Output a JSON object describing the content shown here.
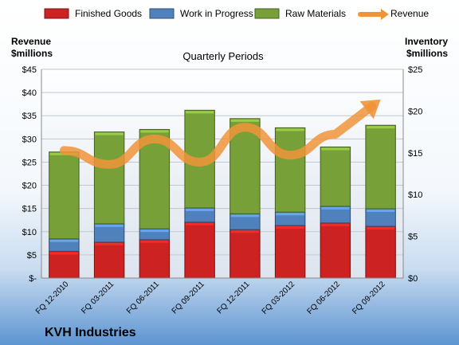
{
  "company": "KVH Industries",
  "chart_data": {
    "type": "bar",
    "stacked": true,
    "title": "Quarterly Periods",
    "ylabel_left_line1": "Revenue",
    "ylabel_left_line2": "$millions",
    "ylabel_right_line1": "Inventory",
    "ylabel_right_line2": "$millions",
    "categories": [
      "FQ 12-2010",
      "FQ 03-2011",
      "FQ 06-2011",
      "FQ 09-2011",
      "FQ 12-2011",
      "FQ 03-2012",
      "FQ 06-2012",
      "FQ 09-2012"
    ],
    "series": [
      {
        "name": "Finished Goods",
        "axis": "right",
        "color": "#cc2222",
        "values": [
          3.2,
          4.3,
          4.6,
          6.7,
          5.8,
          6.3,
          6.6,
          6.2
        ]
      },
      {
        "name": "Work in Progress",
        "axis": "right",
        "color": "#4f81bd",
        "values": [
          1.5,
          2.2,
          1.3,
          1.7,
          1.9,
          1.6,
          2.0,
          2.1
        ]
      },
      {
        "name": "Raw Materials",
        "axis": "right",
        "color": "#77a038",
        "values": [
          10.4,
          11.0,
          11.9,
          11.7,
          11.4,
          10.1,
          7.1,
          10.0
        ]
      },
      {
        "name": "Revenue",
        "axis": "left",
        "type": "line",
        "color": "#f0943a",
        "values": [
          27.5,
          24.5,
          30.0,
          25.0,
          32.5,
          26.5,
          31.0,
          38.5
        ]
      }
    ],
    "y_left": {
      "min": 0,
      "max": 45,
      "ticks": [
        "$-",
        "$5",
        "$10",
        "$15",
        "$20",
        "$25",
        "$30",
        "$35",
        "$40",
        "$45"
      ]
    },
    "y_right": {
      "min": 0,
      "max": 25,
      "ticks": [
        "$0",
        "$5",
        "$10",
        "$15",
        "$20",
        "$25"
      ]
    },
    "legend_position": "top",
    "grid": true
  }
}
